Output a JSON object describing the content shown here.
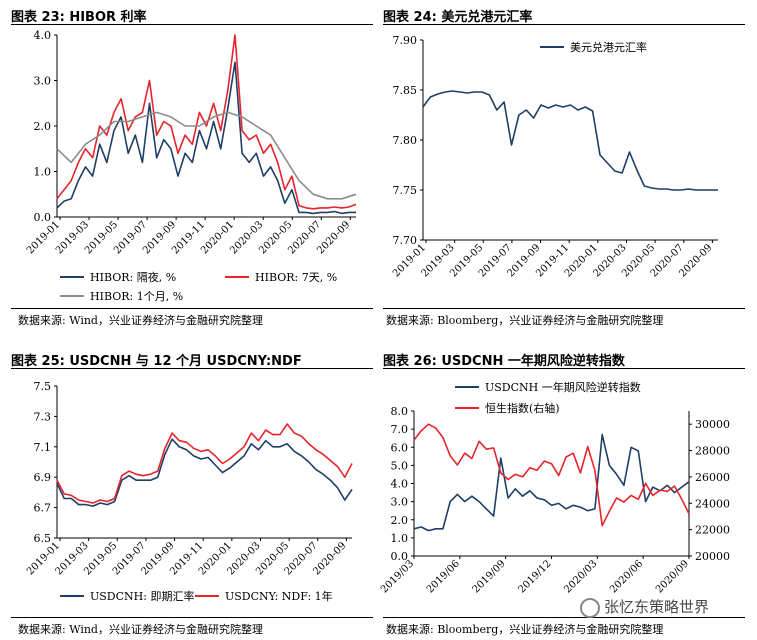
{
  "panels": {
    "p23": {
      "title": "图表 23:  HIBOR 利率",
      "source": "数据来源:  Wind，兴业证券经济与金融研究院整理"
    },
    "p24": {
      "title": "图表 24:  美元兑港元汇率",
      "source": "数据来源:  Bloomberg，兴业证券经济与金融研究院整理"
    },
    "p25": {
      "title": "图表 25:  USDCNH 与 12 个月 USDCNY:NDF",
      "source": "数据来源:  Wind，兴业证券经济与金融研究院整理"
    },
    "p26": {
      "title": "图表 26:  USDCNH 一年期风险逆转指数",
      "source": "数据来源:  Bloomberg，兴业证券经济与金融研究院整理"
    }
  },
  "watermark": "张忆东策略世界",
  "colors": {
    "navy": "#1f3f66",
    "red": "#e8242b",
    "gray": "#8c8c8c"
  },
  "chart_data": [
    {
      "id": "hibor",
      "type": "line",
      "x_ticks": [
        "2019-01",
        "2019-03",
        "2019-05",
        "2019-07",
        "2019-09",
        "2019-11",
        "2020-01",
        "2020-03",
        "2020-05",
        "2020-07",
        "2020-09"
      ],
      "y_ticks": [
        "0.0",
        "1.0",
        "2.0",
        "3.0",
        "4.0"
      ],
      "ylim": [
        0,
        4
      ],
      "xlim": [
        0,
        21
      ],
      "legend_placement": "bottom",
      "series": [
        {
          "name": "HIBOR: 隔夜, %",
          "color": "#1f3f66",
          "x": [
            0,
            0.5,
            1,
            1.5,
            2,
            2.5,
            3,
            3.5,
            4,
            4.5,
            5,
            5.5,
            6,
            6.5,
            7,
            7.5,
            8,
            8.5,
            9,
            9.5,
            10,
            10.5,
            11,
            11.5,
            12,
            12.5,
            13,
            13.5,
            14,
            14.5,
            15,
            15.5,
            16,
            16.5,
            17,
            17.5,
            18,
            18.5,
            19,
            19.5,
            20,
            20.5,
            21
          ],
          "y": [
            0.2,
            0.35,
            0.4,
            0.8,
            1.1,
            0.9,
            1.6,
            1.2,
            1.9,
            2.2,
            1.4,
            1.8,
            1.2,
            2.5,
            1.3,
            1.7,
            1.5,
            0.9,
            1.4,
            1.2,
            1.9,
            1.5,
            2.1,
            1.5,
            2.4,
            3.4,
            1.4,
            1.2,
            1.4,
            0.9,
            1.1,
            0.8,
            0.3,
            0.6,
            0.1,
            0.1,
            0.08,
            0.1,
            0.1,
            0.12,
            0.08,
            0.1,
            0.1
          ]
        },
        {
          "name": "HIBOR: 7天, %",
          "color": "#e8242b",
          "x": [
            0,
            0.5,
            1,
            1.5,
            2,
            2.5,
            3,
            3.5,
            4,
            4.5,
            5,
            5.5,
            6,
            6.5,
            7,
            7.5,
            8,
            8.5,
            9,
            9.5,
            10,
            10.5,
            11,
            11.5,
            12,
            12.5,
            13,
            13.5,
            14,
            14.5,
            15,
            15.5,
            16,
            16.5,
            17,
            17.5,
            18,
            18.5,
            19,
            19.5,
            20,
            20.5,
            21
          ],
          "y": [
            0.4,
            0.6,
            0.8,
            1.2,
            1.5,
            1.3,
            2.0,
            1.8,
            2.3,
            2.6,
            1.9,
            2.2,
            2.3,
            3.0,
            1.8,
            2.1,
            2.0,
            1.4,
            1.8,
            1.6,
            2.3,
            2.0,
            2.5,
            1.9,
            2.8,
            4.0,
            1.9,
            1.7,
            1.8,
            1.4,
            1.6,
            1.2,
            0.6,
            0.9,
            0.25,
            0.2,
            0.18,
            0.2,
            0.2,
            0.22,
            0.2,
            0.22,
            0.28
          ]
        },
        {
          "name": "HIBOR: 1个月, %",
          "color": "#8c8c8c",
          "x": [
            0,
            1,
            2,
            3,
            4,
            5,
            6,
            7,
            8,
            9,
            10,
            11,
            12,
            13,
            14,
            15,
            16,
            17,
            18,
            19,
            20,
            21
          ],
          "y": [
            1.5,
            1.2,
            1.6,
            1.8,
            2.1,
            2.1,
            2.2,
            2.3,
            2.2,
            2.0,
            2.0,
            2.2,
            2.3,
            2.2,
            2.0,
            1.8,
            1.3,
            0.8,
            0.5,
            0.4,
            0.4,
            0.5
          ]
        }
      ]
    },
    {
      "id": "usdhkd",
      "type": "line",
      "x_ticks": [
        "2019-01",
        "2019-03",
        "2019-05",
        "2019-07",
        "2019-09",
        "2019-11",
        "2020-01",
        "2020-03",
        "2020-05",
        "2020-07",
        "2020-09"
      ],
      "y_ticks": [
        "7.70",
        "7.75",
        "7.80",
        "7.85",
        "7.90"
      ],
      "ylim": [
        7.7,
        7.9
      ],
      "xlim": [
        0,
        20
      ],
      "legend_placement": "top-right",
      "series": [
        {
          "name": "美元兑港元汇率",
          "color": "#1f3f66",
          "x": [
            0,
            0.5,
            1,
            1.5,
            2,
            2.5,
            3,
            3.5,
            4,
            4.5,
            5,
            5.5,
            6,
            6.5,
            7,
            7.5,
            8,
            8.5,
            9,
            9.5,
            10,
            10.5,
            11,
            11.5,
            12,
            12.5,
            13,
            13.5,
            14,
            14.5,
            15,
            15.5,
            16,
            16.5,
            17,
            17.5,
            18,
            18.5,
            19,
            19.5,
            20
          ],
          "y": [
            7.833,
            7.843,
            7.846,
            7.848,
            7.849,
            7.848,
            7.847,
            7.848,
            7.848,
            7.845,
            7.83,
            7.838,
            7.795,
            7.825,
            7.83,
            7.822,
            7.835,
            7.832,
            7.835,
            7.833,
            7.835,
            7.83,
            7.833,
            7.829,
            7.785,
            7.777,
            7.769,
            7.767,
            7.788,
            7.77,
            7.754,
            7.752,
            7.751,
            7.751,
            7.75,
            7.75,
            7.751,
            7.75,
            7.75,
            7.75,
            7.75
          ]
        }
      ]
    },
    {
      "id": "usdcnh",
      "type": "line",
      "x_ticks": [
        "2019-01",
        "2019-03",
        "2019-05",
        "2019-07",
        "2019-09",
        "2019-11",
        "2020-01",
        "2020-03",
        "2020-05",
        "2020-07",
        "2020-09"
      ],
      "y_ticks": [
        "6.5",
        "6.7",
        "6.9",
        "7.1",
        "7.3",
        "7.5"
      ],
      "ylim": [
        6.5,
        7.5
      ],
      "xlim": [
        0,
        20.5
      ],
      "legend_placement": "bottom",
      "series": [
        {
          "name": "USDCNH: 即期汇率",
          "color": "#1f3f66",
          "x": [
            0,
            0.5,
            1,
            1.5,
            2,
            2.5,
            3,
            3.5,
            4,
            4.5,
            5,
            5.5,
            6,
            6.5,
            7,
            7.5,
            8,
            8.5,
            9,
            9.5,
            10,
            10.5,
            11,
            11.5,
            12,
            12.5,
            13,
            13.5,
            14,
            14.5,
            15,
            15.5,
            16,
            16.5,
            17,
            17.5,
            18,
            18.5,
            19,
            19.5,
            20,
            20.5
          ],
          "y": [
            6.86,
            6.76,
            6.76,
            6.72,
            6.72,
            6.71,
            6.73,
            6.72,
            6.74,
            6.88,
            6.91,
            6.88,
            6.88,
            6.88,
            6.9,
            7.05,
            7.15,
            7.1,
            7.08,
            7.04,
            7.02,
            7.03,
            6.98,
            6.93,
            6.96,
            7.0,
            7.04,
            7.12,
            7.08,
            7.14,
            7.1,
            7.1,
            7.12,
            7.07,
            7.04,
            7.0,
            6.95,
            6.92,
            6.88,
            6.83,
            6.75,
            6.82
          ]
        },
        {
          "name": "USDCNY: NDF: 1年",
          "color": "#e8242b",
          "x": [
            0,
            0.5,
            1,
            1.5,
            2,
            2.5,
            3,
            3.5,
            4,
            4.5,
            5,
            5.5,
            6,
            6.5,
            7,
            7.5,
            8,
            8.5,
            9,
            9.5,
            10,
            10.5,
            11,
            11.5,
            12,
            12.5,
            13,
            13.5,
            14,
            14.5,
            15,
            15.5,
            16,
            16.5,
            17,
            17.5,
            18,
            18.5,
            19,
            19.5,
            20,
            20.5
          ],
          "y": [
            6.88,
            6.79,
            6.78,
            6.75,
            6.74,
            6.73,
            6.75,
            6.74,
            6.76,
            6.91,
            6.94,
            6.92,
            6.91,
            6.92,
            6.94,
            7.09,
            7.19,
            7.14,
            7.13,
            7.09,
            7.07,
            7.08,
            7.04,
            6.99,
            7.02,
            7.06,
            7.1,
            7.19,
            7.14,
            7.21,
            7.18,
            7.18,
            7.25,
            7.19,
            7.17,
            7.12,
            7.08,
            7.05,
            7.01,
            6.97,
            6.9,
            6.99
          ]
        }
      ]
    },
    {
      "id": "risk_reversal",
      "type": "line",
      "x_ticks": [
        "2019/03",
        "2019/06",
        "2019/09",
        "2019/12",
        "2020/03",
        "2020/06",
        "2020/09"
      ],
      "y_ticks": [
        "0.0",
        "1.0",
        "2.0",
        "3.0",
        "4.0",
        "5.0",
        "6.0",
        "7.0",
        "8.0"
      ],
      "y2_ticks": [
        "20000",
        "22000",
        "24000",
        "26000",
        "28000",
        "30000"
      ],
      "ylim": [
        0,
        8
      ],
      "y2lim": [
        20000,
        31000
      ],
      "xlim": [
        0,
        19
      ],
      "legend_placement": "top-left",
      "series": [
        {
          "name": "USDCNH 一年期风险逆转指数",
          "color": "#1f3f66",
          "axis": "left",
          "x": [
            0,
            0.5,
            1,
            1.5,
            2,
            2.5,
            3,
            3.5,
            4,
            4.5,
            5,
            5.5,
            6,
            6.5,
            7,
            7.5,
            8,
            8.5,
            9,
            9.5,
            10,
            10.5,
            11,
            11.5,
            12,
            12.5,
            13,
            13.5,
            14,
            14.5,
            15,
            15.5,
            16,
            16.5,
            17,
            17.5,
            18,
            18.5,
            19
          ],
          "y": [
            1.5,
            1.6,
            1.4,
            1.5,
            1.5,
            3.0,
            3.4,
            3.0,
            3.3,
            3.0,
            2.6,
            2.2,
            5.4,
            3.2,
            3.7,
            3.3,
            3.6,
            3.2,
            3.1,
            2.8,
            2.9,
            2.6,
            2.8,
            2.7,
            2.5,
            2.6,
            6.7,
            5.0,
            4.5,
            3.9,
            6.0,
            5.8,
            3.0,
            3.8,
            3.6,
            3.9,
            3.5,
            3.8,
            4.1
          ]
        },
        {
          "name": "恒生指数(右轴)",
          "color": "#e8242b",
          "axis": "right",
          "x": [
            0,
            0.5,
            1,
            1.5,
            2,
            2.5,
            3,
            3.5,
            4,
            4.5,
            5,
            5.5,
            6,
            6.5,
            7,
            7.5,
            8,
            8.5,
            9,
            9.5,
            10,
            10.5,
            11,
            11.5,
            12,
            12.5,
            13,
            13.5,
            14,
            14.5,
            15,
            15.5,
            16,
            16.5,
            17,
            17.5,
            18,
            18.5,
            19
          ],
          "y": [
            28800,
            29500,
            30000,
            29700,
            29000,
            27600,
            26900,
            27800,
            27400,
            28700,
            28100,
            28200,
            26300,
            25800,
            26200,
            26000,
            26700,
            26500,
            27200,
            27000,
            26100,
            27500,
            27800,
            26300,
            28300,
            26500,
            22300,
            23400,
            24400,
            24100,
            24600,
            24300,
            25500,
            24600,
            25000,
            24900,
            25300,
            24300,
            23200
          ]
        }
      ]
    }
  ]
}
